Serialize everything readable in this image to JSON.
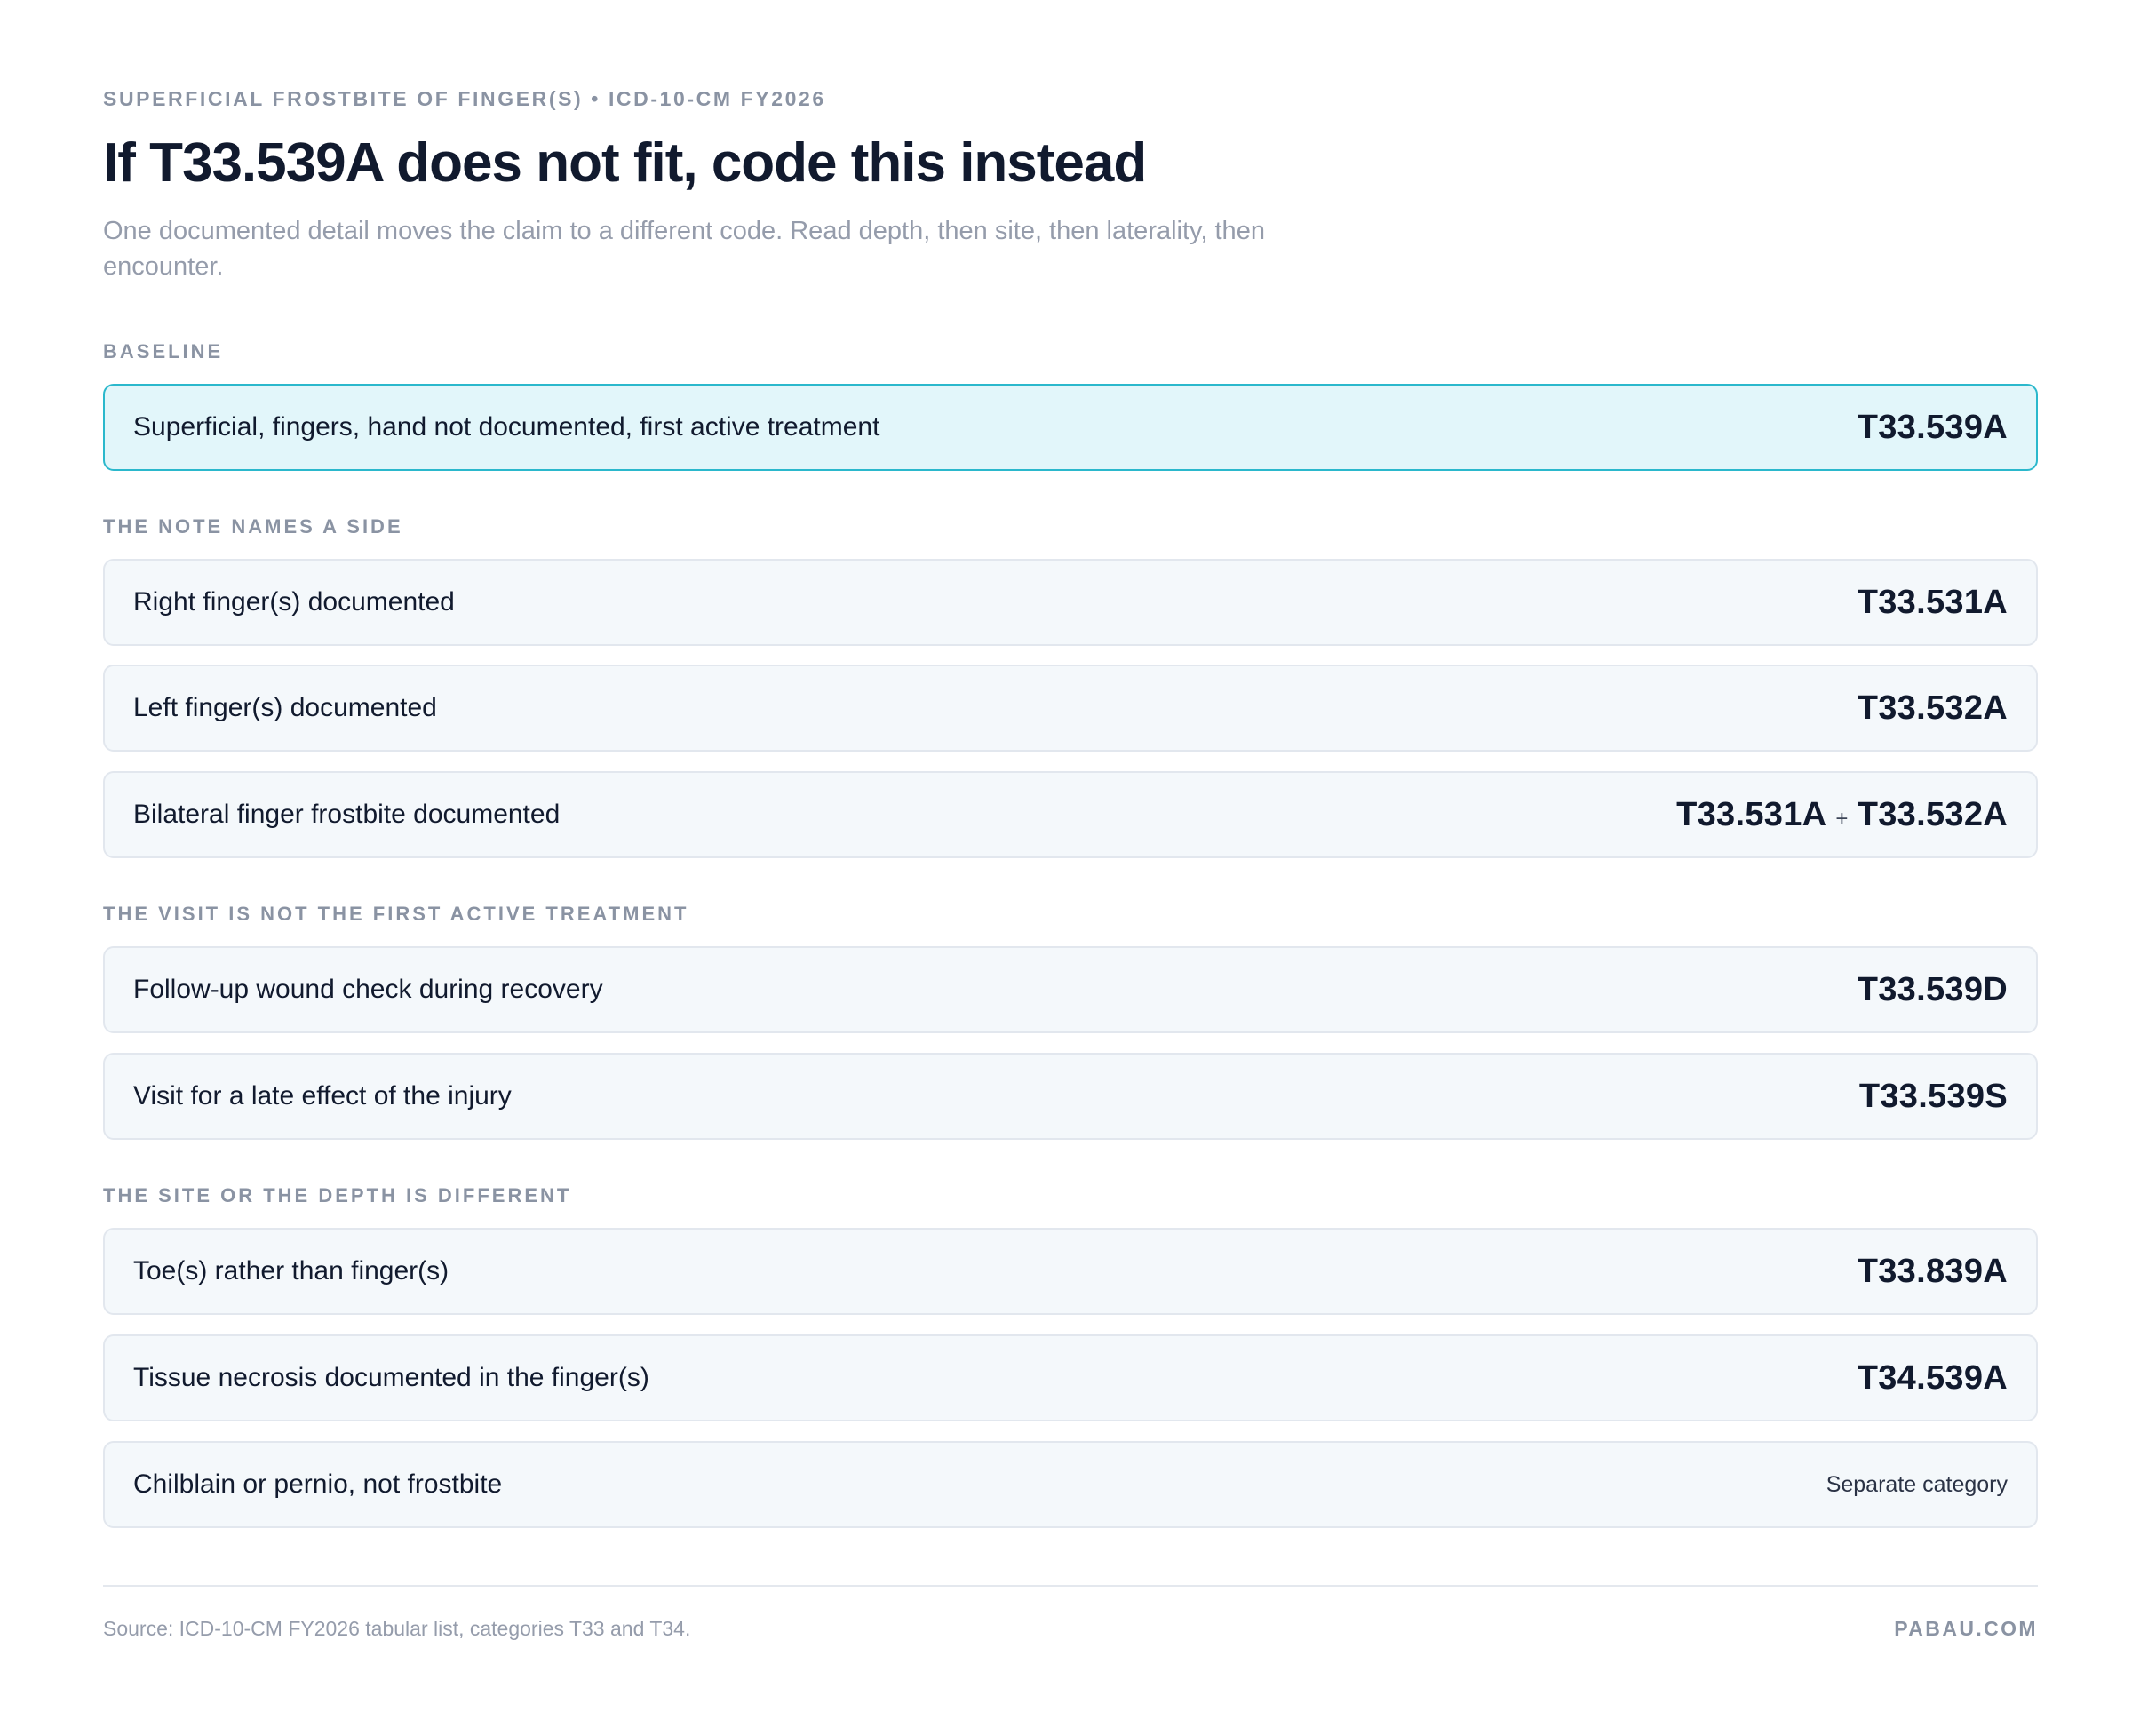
{
  "header": {
    "eyebrow": "SUPERFICIAL FROSTBITE OF FINGER(S) • ICD-10-CM FY2026",
    "title": "If T33.539A does not fit, code this instead",
    "subtitle": "One documented detail moves the claim to a different code. Read depth, then site, then laterality, then encounter."
  },
  "sections": [
    {
      "label": "BASELINE",
      "rows": [
        {
          "label": "Superficial, fingers, hand not documented, first active treatment",
          "code": "T33.539A"
        }
      ]
    },
    {
      "label": "THE NOTE NAMES A SIDE",
      "rows": [
        {
          "label": "Right finger(s) documented",
          "code": "T33.531A"
        },
        {
          "label": "Left finger(s) documented",
          "code": "T33.532A"
        },
        {
          "label": "Bilateral finger frostbite documented",
          "code_a": "T33.531A",
          "plus": "+",
          "code_b": "T33.532A"
        }
      ]
    },
    {
      "label": "THE VISIT IS NOT THE FIRST ACTIVE TREATMENT",
      "rows": [
        {
          "label": "Follow-up wound check during recovery",
          "code": "T33.539D"
        },
        {
          "label": "Visit for a late effect of the injury",
          "code": "T33.539S"
        }
      ]
    },
    {
      "label": "THE SITE OR THE DEPTH IS DIFFERENT",
      "rows": [
        {
          "label": "Toe(s) rather than finger(s)",
          "code": "T33.839A"
        },
        {
          "label": "Tissue necrosis documented in the finger(s)",
          "code": "T34.539A"
        },
        {
          "label": "Chilblain or pernio, not frostbite",
          "note": "Separate category"
        }
      ]
    }
  ],
  "footer": {
    "source": "Source: ICD-10-CM FY2026 tabular list, categories T33 and T34.",
    "brand": "PABAU.COM"
  },
  "colors": {
    "baseline_bg": "#e2f6fa",
    "baseline_border": "#2bb8cc",
    "row_bg": "#f4f8fb",
    "text": "#111a2e",
    "muted": "#8a93a3"
  }
}
